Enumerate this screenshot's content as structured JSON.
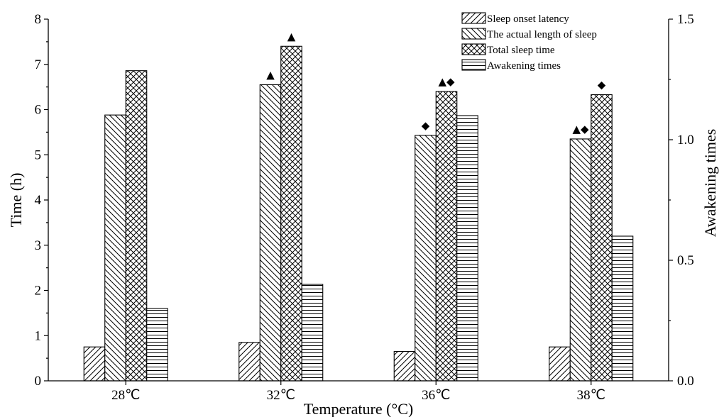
{
  "chart_data": {
    "type": "bar",
    "title": "",
    "xlabel": "Temperature (°C)",
    "ylabel": "Time (h)",
    "y2label": "Awakening times",
    "categories": [
      "28℃",
      "32℃",
      "36℃",
      "38℃"
    ],
    "ylim": [
      0,
      8
    ],
    "yticks": [
      "0",
      "1",
      "2",
      "3",
      "4",
      "5",
      "6",
      "7",
      "8"
    ],
    "y2lim": [
      0,
      1.5
    ],
    "y2ticks": [
      "0.0",
      "0.5",
      "1.0",
      "1.5"
    ],
    "legend_position": "top-right",
    "series": [
      {
        "name": "Sleep onset latency",
        "axis": "left",
        "pattern": "diag-up",
        "values": [
          0.75,
          0.85,
          0.65,
          0.75
        ],
        "markers": [
          "",
          "",
          "",
          ""
        ]
      },
      {
        "name": "The actual length of sleep",
        "axis": "left",
        "pattern": "diag-down",
        "values": [
          5.88,
          6.55,
          5.43,
          5.35
        ],
        "markers": [
          "",
          "▲",
          "◆",
          "▲◆"
        ]
      },
      {
        "name": "Total sleep time",
        "axis": "left",
        "pattern": "crosshatch",
        "values": [
          6.86,
          7.4,
          6.4,
          6.33
        ],
        "markers": [
          "",
          "▲",
          "▲◆",
          "◆"
        ]
      },
      {
        "name": "Awakening times",
        "axis": "right",
        "pattern": "horizontal",
        "values": [
          0.3,
          0.4,
          1.1,
          0.6
        ],
        "markers": [
          "",
          "",
          "",
          ""
        ]
      }
    ]
  }
}
